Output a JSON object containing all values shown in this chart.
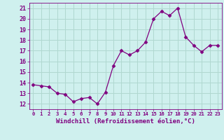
{
  "x": [
    0,
    1,
    2,
    3,
    4,
    5,
    6,
    7,
    8,
    9,
    10,
    11,
    12,
    13,
    14,
    15,
    16,
    17,
    18,
    19,
    20,
    21,
    22,
    23
  ],
  "y": [
    13.8,
    13.7,
    13.6,
    13.0,
    12.9,
    12.2,
    12.5,
    12.6,
    12.0,
    13.1,
    15.6,
    17.0,
    16.6,
    17.0,
    17.8,
    20.0,
    20.7,
    20.3,
    21.0,
    18.3,
    17.5,
    16.9,
    17.5,
    17.5
  ],
  "line_color": "#800080",
  "marker": "D",
  "marker_size": 2.5,
  "xlabel": "Windchill (Refroidissement éolien,°C)",
  "xlabel_fontsize": 6.5,
  "bg_color": "#cff0ee",
  "grid_color": "#b0d8d0",
  "tick_color": "#800080",
  "label_color": "#800080",
  "ylim": [
    11.5,
    21.5
  ],
  "xlim": [
    -0.5,
    23.5
  ],
  "yticks": [
    12,
    13,
    14,
    15,
    16,
    17,
    18,
    19,
    20,
    21
  ],
  "xticks": [
    0,
    1,
    2,
    3,
    4,
    5,
    6,
    7,
    8,
    9,
    10,
    11,
    12,
    13,
    14,
    15,
    16,
    17,
    18,
    19,
    20,
    21,
    22,
    23
  ],
  "ytick_fontsize": 6.0,
  "xtick_fontsize": 5.2
}
